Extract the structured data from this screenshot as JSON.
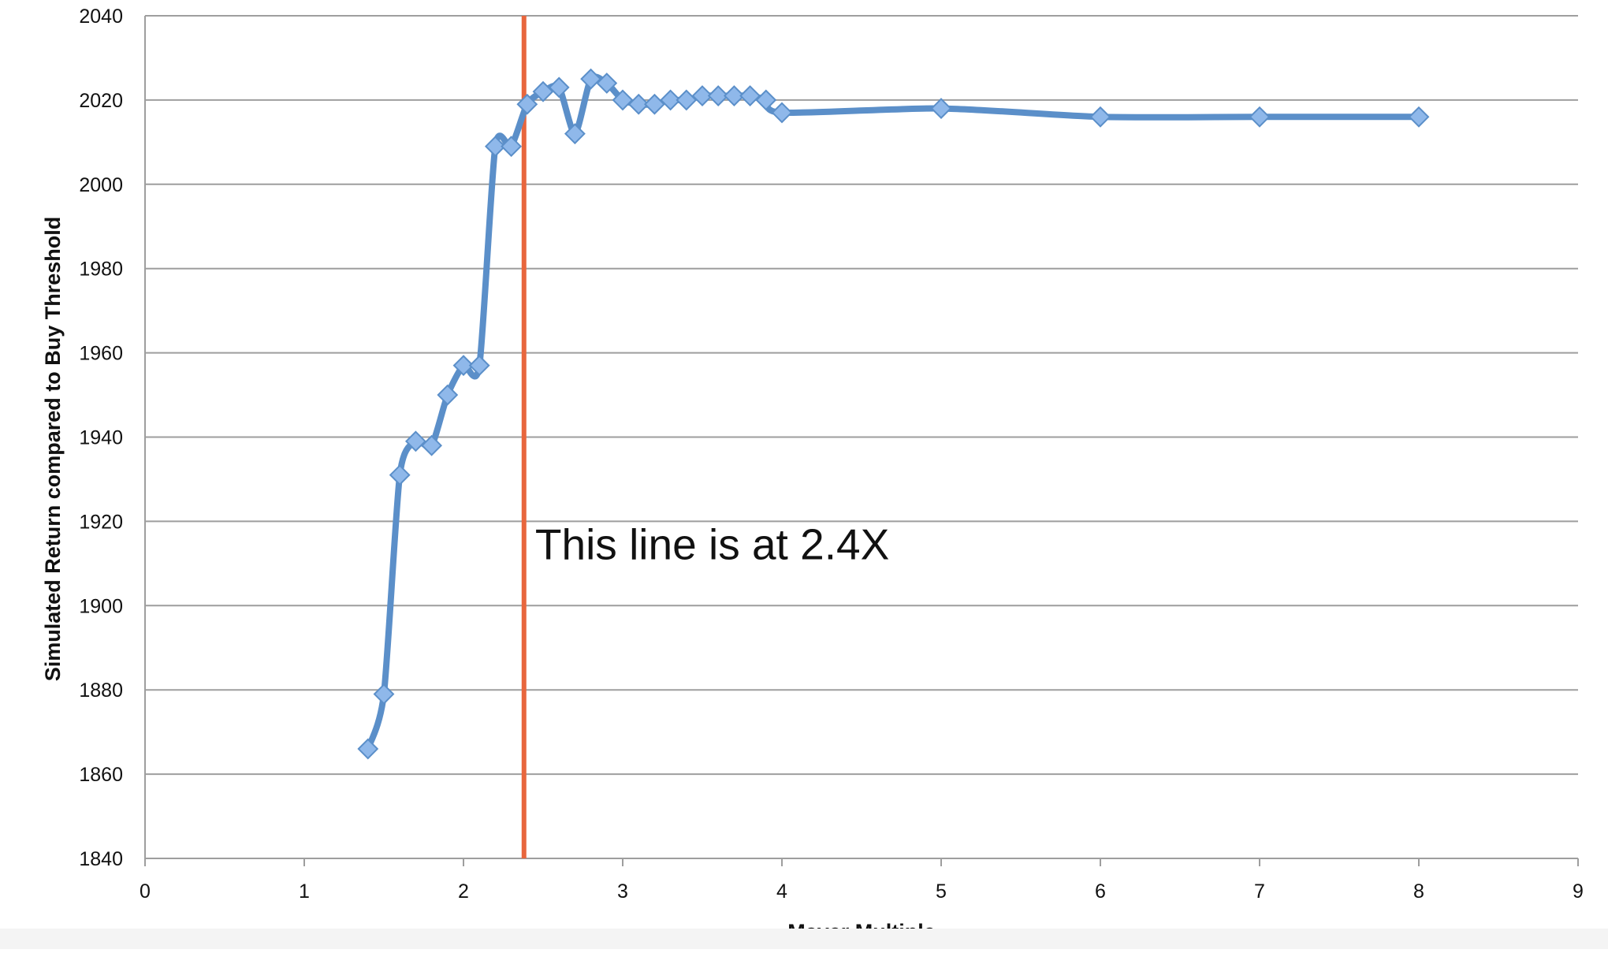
{
  "chart_data": {
    "type": "line",
    "title": "",
    "xlabel": "Mayer Multiple",
    "ylabel": "Simulated Return compared to Buy Threshold",
    "xlim": [
      0,
      9
    ],
    "ylim": [
      1840,
      2040
    ],
    "xticks": [
      0,
      1,
      2,
      3,
      4,
      5,
      6,
      7,
      8,
      9
    ],
    "yticks": [
      1840,
      1860,
      1880,
      1900,
      1920,
      1940,
      1960,
      1980,
      2000,
      2020,
      2040
    ],
    "grid": "horizontal",
    "legend": "none",
    "series": [
      {
        "color": "#5b8fc9",
        "marker": "diamond",
        "points": [
          [
            1.4,
            1866
          ],
          [
            1.5,
            1879
          ],
          [
            1.6,
            1931
          ],
          [
            1.7,
            1939
          ],
          [
            1.8,
            1938
          ],
          [
            1.9,
            1950
          ],
          [
            2.0,
            1957
          ],
          [
            2.1,
            1957
          ],
          [
            2.2,
            2009
          ],
          [
            2.3,
            2009
          ],
          [
            2.4,
            2019
          ],
          [
            2.5,
            2022
          ],
          [
            2.6,
            2023
          ],
          [
            2.7,
            2012
          ],
          [
            2.8,
            2025
          ],
          [
            2.9,
            2024
          ],
          [
            3.0,
            2020
          ],
          [
            3.1,
            2019
          ],
          [
            3.2,
            2019
          ],
          [
            3.3,
            2020
          ],
          [
            3.4,
            2020
          ],
          [
            3.5,
            2021
          ],
          [
            3.6,
            2021
          ],
          [
            3.7,
            2021
          ],
          [
            3.8,
            2021
          ],
          [
            3.9,
            2020
          ],
          [
            4.0,
            2017
          ],
          [
            5.0,
            2018
          ],
          [
            6.0,
            2016
          ],
          [
            7.0,
            2016
          ],
          [
            8.0,
            2016
          ]
        ]
      }
    ],
    "reference_line": {
      "x": 2.38,
      "color": "#e8663d"
    },
    "annotations": [
      {
        "text": "This line is at 2.4X",
        "x": 2.45,
        "y": 1911
      }
    ]
  }
}
